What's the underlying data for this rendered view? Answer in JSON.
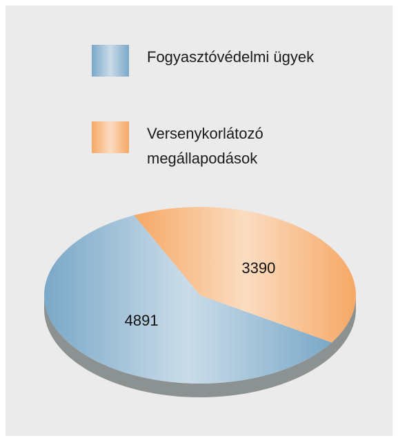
{
  "chart_data": {
    "type": "pie",
    "categories": [
      "Fogyasztóvédelmi ügyek",
      "Versenykorlátozó megállapodások"
    ],
    "values": [
      4891,
      3390
    ],
    "colors": [
      "#7aa8c8",
      "#f6a865"
    ]
  }
}
